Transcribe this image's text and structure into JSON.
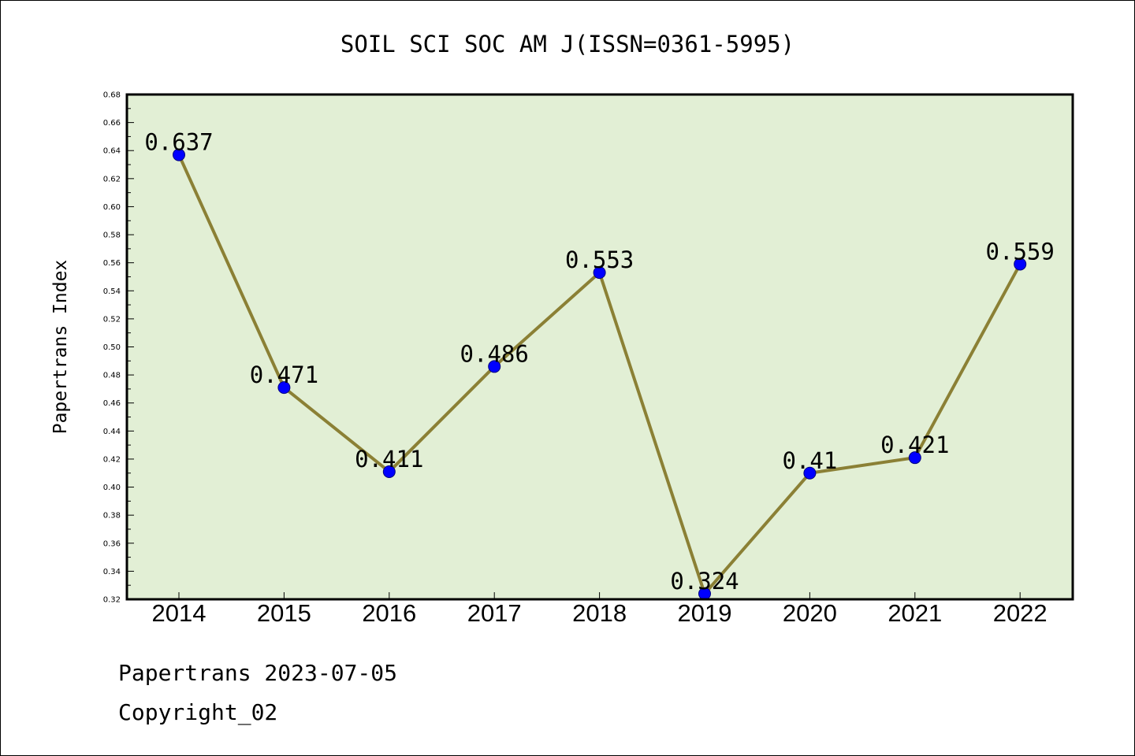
{
  "chart_data": {
    "type": "line",
    "title": "SOIL SCI SOC AM J(ISSN=0361-5995)",
    "xlabel": "",
    "ylabel": "Papertrans Index",
    "categories": [
      "2014",
      "2015",
      "2016",
      "2017",
      "2018",
      "2019",
      "2020",
      "2021",
      "2022"
    ],
    "series": [
      {
        "values": [
          0.637,
          0.471,
          0.411,
          0.486,
          0.553,
          0.324,
          0.41,
          0.421,
          0.559
        ],
        "labels": [
          "0.637",
          "0.471",
          "0.411",
          "0.486",
          "0.553",
          "0.324",
          "0.41",
          "0.421",
          "0.559"
        ]
      }
    ],
    "ylim": [
      0.32,
      0.68
    ],
    "yticks": [
      "0.32",
      "0.34",
      "0.36",
      "0.38",
      "0.40",
      "0.42",
      "0.44",
      "0.46",
      "0.48",
      "0.50",
      "0.52",
      "0.54",
      "0.56",
      "0.58",
      "0.60",
      "0.62",
      "0.64",
      "0.66",
      "0.68"
    ],
    "grid": false,
    "legend": "none",
    "colors": {
      "plot_background": "#e2efd5",
      "line": "#8b8035",
      "marker": "#0000ff"
    }
  },
  "footer": {
    "line1": "Papertrans 2023-07-05",
    "line2": "Copyright_02"
  }
}
